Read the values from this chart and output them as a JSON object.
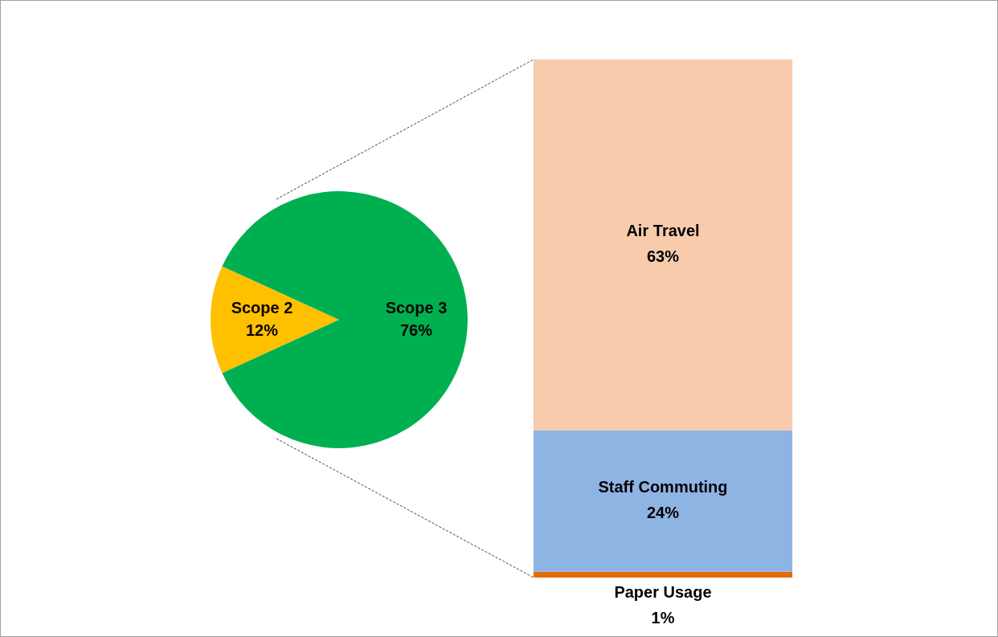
{
  "chart_data": [
    {
      "type": "pie",
      "categories": [
        "Scope 2",
        "Scope 3"
      ],
      "values": [
        12,
        76
      ],
      "colors": [
        "#ffc000",
        "#00b050"
      ],
      "value_labels": [
        "12%",
        "76%"
      ]
    },
    {
      "type": "bar",
      "stacked": true,
      "categories": [
        null
      ],
      "series": [
        {
          "name": "Paper Usage",
          "color": "#e46c0a",
          "values": [
            1
          ],
          "value_labels": [
            "1%"
          ]
        },
        {
          "name": "Staff Commuting",
          "color": "#8eb4e3",
          "values": [
            24
          ],
          "value_labels": [
            "24%"
          ]
        },
        {
          "name": "Air Travel",
          "color": "#f8cbad",
          "values": [
            63
          ],
          "value_labels": [
            "63%"
          ]
        }
      ]
    }
  ]
}
